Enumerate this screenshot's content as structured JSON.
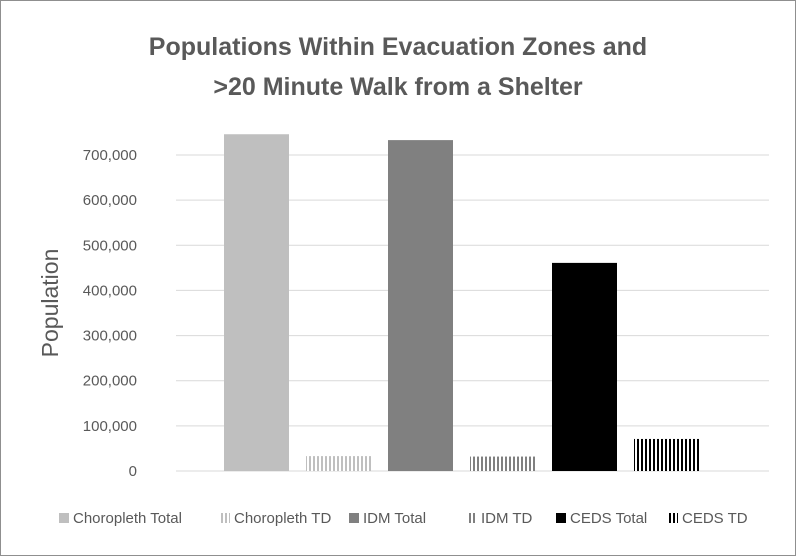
{
  "chart_data": {
    "type": "bar",
    "title_lines": [
      "Populations Within Evacuation Zones and",
      ">20 Minute Walk from a Shelter"
    ],
    "xlabel": "",
    "ylabel": "Population",
    "ylim": [
      0,
      750000
    ],
    "yticks": [
      0,
      100000,
      200000,
      300000,
      400000,
      500000,
      600000,
      700000
    ],
    "ytick_labels": [
      "0",
      "100,000",
      "200,000",
      "300,000",
      "400,000",
      "500,000",
      "600,000",
      "700,000"
    ],
    "grid": true,
    "legend_position": "bottom",
    "series": [
      {
        "name": "Choropleth Total",
        "value": 746000,
        "color": "#bfbfbf",
        "pattern": "solid"
      },
      {
        "name": "Choropleth TD",
        "value": 33000,
        "color": "#bfbfbf",
        "pattern": "vertical-lines"
      },
      {
        "name": "IDM Total",
        "value": 733000,
        "color": "#808080",
        "pattern": "solid"
      },
      {
        "name": "IDM TD",
        "value": 32000,
        "color": "#808080",
        "pattern": "vertical-lines"
      },
      {
        "name": "CEDS Total",
        "value": 461000,
        "color": "#000000",
        "pattern": "solid"
      },
      {
        "name": "CEDS TD",
        "value": 71000,
        "color": "#000000",
        "pattern": "vertical-lines"
      }
    ]
  }
}
